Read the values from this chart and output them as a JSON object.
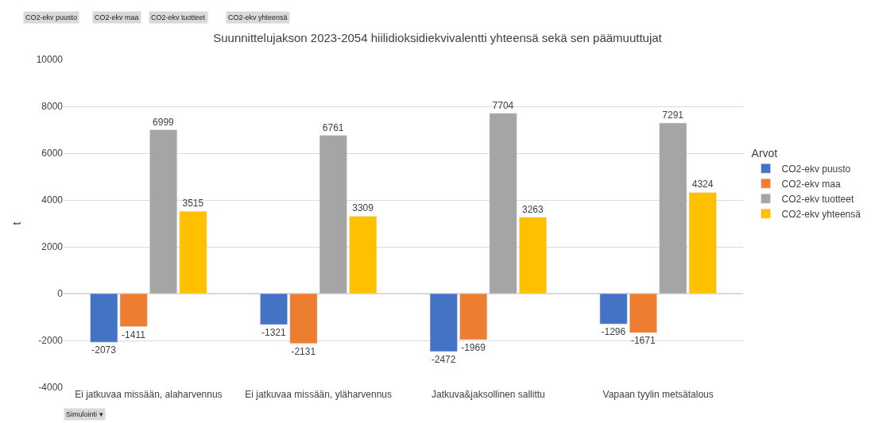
{
  "chart_data": {
    "type": "bar",
    "title": "Suunnittelujakson 2023-2054 hiilidioksidiekvivalentti yhteensä sekä sen päämuuttujat",
    "ylabel": "t",
    "legend_title": "Arvot",
    "categories": [
      "Ei jatkuvaa missään, alaharvennus",
      "Ei jatkuvaa missään, yläharvennus",
      "Jatkuva&jaksollinen sallittu",
      "Vapaan tyylin metsätalous"
    ],
    "series": [
      {
        "name": "CO2-ekv puusto",
        "color": "#4472c4",
        "values": [
          -2073,
          -1321,
          -2472,
          -1296
        ]
      },
      {
        "name": "CO2-ekv maa",
        "color": "#ed7d31",
        "values": [
          -1411,
          -2131,
          -1969,
          -1671
        ]
      },
      {
        "name": "CO2-ekv tuotteet",
        "color": "#a5a5a5",
        "values": [
          6999,
          6761,
          7704,
          7291
        ]
      },
      {
        "name": "CO2-ekv yhteensä",
        "color": "#ffc000",
        "values": [
          3515,
          3309,
          3263,
          4324
        ]
      }
    ],
    "ylim": [
      -4000,
      10000
    ],
    "yticks": [
      -4000,
      -2000,
      0,
      2000,
      4000,
      6000,
      8000,
      10000
    ],
    "grid": "y",
    "legend": "right",
    "data_labels": true,
    "annotations": [
      "CO2-ekv puusto",
      "CO2-ekv maa",
      "CO2-ekv tuotteet",
      "CO2-ekv yhteensä",
      "Simulointi ▾"
    ]
  }
}
